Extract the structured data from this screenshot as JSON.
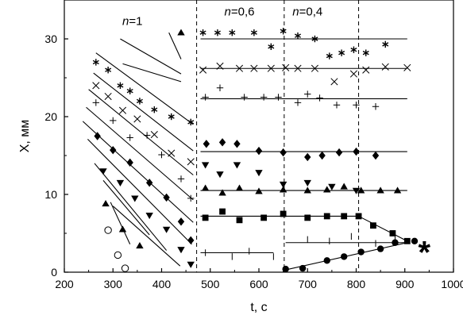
{
  "chart_data": {
    "type": "scatter",
    "title": "",
    "xlabel": "t, c",
    "ylabel": "X, мм",
    "xlim": [
      200,
      1000
    ],
    "ylim": [
      0,
      35
    ],
    "xticks": [
      200,
      300,
      400,
      500,
      600,
      700,
      800,
      900,
      1000
    ],
    "yticks": [
      0,
      10,
      20,
      30
    ],
    "grid": false,
    "vlines": [
      472,
      652,
      805
    ],
    "region_labels": [
      {
        "text": "n=1",
        "x": 340,
        "y": 31.8
      },
      {
        "text": "n=0,6",
        "x": 560,
        "y": 33.0
      },
      {
        "text": "n=0,4",
        "x": 700,
        "y": 33.0
      }
    ],
    "annotation_marker": {
      "text": "*",
      "x": 940,
      "y": 3.6
    },
    "lines": [
      {
        "x": [
          265,
          465
        ],
        "y": [
          28.2,
          19.0
        ]
      },
      {
        "x": [
          260,
          465
        ],
        "y": [
          25.6,
          15.6
        ]
      },
      {
        "x": [
          250,
          465
        ],
        "y": [
          23.5,
          12.5
        ]
      },
      {
        "x": [
          245,
          465
        ],
        "y": [
          21.2,
          9.3
        ]
      },
      {
        "x": [
          238,
          465
        ],
        "y": [
          19.4,
          6.4
        ]
      },
      {
        "x": [
          248,
          462
        ],
        "y": [
          17.1,
          3.6
        ]
      },
      {
        "x": [
          262,
          410
        ],
        "y": [
          14.0,
          2.8
        ]
      },
      {
        "x": [
          280,
          375
        ],
        "y": [
          11.8,
          4.8
        ]
      },
      {
        "x": [
          295,
          335
        ],
        "y": [
          9.0,
          3.6
        ]
      },
      {
        "x": [
          300,
          438
        ],
        "y": [
          8.5,
          0.8
        ]
      },
      {
        "x": [
          320,
          440
        ],
        "y": [
          26.8,
          24.5
        ]
      },
      {
        "x": [
          315,
          440
        ],
        "y": [
          30.0,
          25.5
        ]
      },
      {
        "x": [
          415,
          440
        ],
        "y": [
          30.8,
          27.4
        ]
      },
      {
        "x": [
          480,
          905
        ],
        "y": [
          30.0,
          30.0
        ]
      },
      {
        "x": [
          480,
          905
        ],
        "y": [
          26.2,
          26.2
        ]
      },
      {
        "x": [
          480,
          905
        ],
        "y": [
          22.3,
          22.3
        ]
      },
      {
        "x": [
          480,
          905
        ],
        "y": [
          15.5,
          15.5
        ]
      },
      {
        "x": [
          480,
          905
        ],
        "y": [
          10.5,
          10.5
        ]
      },
      {
        "x": [
          480,
          805
        ],
        "y": [
          7.2,
          7.2
        ]
      },
      {
        "x": [
          805,
          905
        ],
        "y": [
          7.2,
          4.0
        ]
      },
      {
        "x": [
          655,
          905
        ],
        "y": [
          3.8,
          3.8
        ]
      },
      {
        "x": [
          480,
          630
        ],
        "y": [
          2.5,
          2.5
        ]
      },
      {
        "x": [
          655,
          905
        ],
        "y": [
          0.3,
          3.8
        ]
      }
    ],
    "series": [
      {
        "marker": "asterisk",
        "x": [
          265,
          290,
          315,
          335,
          355,
          385,
          420,
          460,
          485,
          515,
          545,
          590,
          625,
          650,
          680,
          715,
          745,
          770,
          795,
          820,
          860
        ],
        "y": [
          27.0,
          26.0,
          24.0,
          23.3,
          22.0,
          20.9,
          20.0,
          19.3,
          30.8,
          30.8,
          30.8,
          30.8,
          29.0,
          31.0,
          30.4,
          30.0,
          27.8,
          28.2,
          28.6,
          28.2,
          29.3
        ]
      },
      {
        "marker": "cross",
        "x": [
          265,
          290,
          320,
          350,
          385,
          420,
          460,
          485,
          520,
          560,
          590,
          625,
          655,
          680,
          715,
          755,
          795,
          820,
          860,
          905
        ],
        "y": [
          24.0,
          22.6,
          20.8,
          19.7,
          17.7,
          15.3,
          14.2,
          26.0,
          26.5,
          26.2,
          26.2,
          26.2,
          26.3,
          26.2,
          26.2,
          24.5,
          25.5,
          26.0,
          26.4,
          26.3
        ]
      },
      {
        "marker": "plus",
        "x": [
          265,
          300,
          335,
          370,
          400,
          440,
          460,
          490,
          520,
          570,
          610,
          640,
          680,
          700,
          725,
          760,
          800,
          840
        ],
        "y": [
          21.8,
          19.5,
          17.3,
          17.6,
          15.1,
          12.0,
          9.5,
          22.5,
          23.7,
          22.5,
          22.5,
          22.5,
          21.8,
          22.9,
          22.4,
          21.5,
          21.5,
          21.3
        ]
      },
      {
        "marker": "diamond",
        "x": [
          268,
          300,
          335,
          375,
          410,
          440,
          460,
          492,
          525,
          555,
          600,
          650,
          700,
          730,
          765,
          800,
          840
        ],
        "y": [
          17.5,
          15.7,
          14.1,
          11.5,
          9.6,
          6.5,
          4.1,
          16.5,
          16.7,
          16.5,
          15.6,
          15.4,
          14.8,
          15.0,
          15.4,
          15.5,
          15.0
        ]
      },
      {
        "marker": "triangle-down",
        "x": [
          280,
          315,
          345,
          375,
          410,
          440,
          460,
          490,
          520,
          555,
          600,
          650,
          700,
          750,
          800
        ],
        "y": [
          13.0,
          11.5,
          9.5,
          7.3,
          5.5,
          2.9,
          1.0,
          13.8,
          12.6,
          13.8,
          12.8,
          11.3,
          11.5,
          11.0,
          10.5
        ]
      },
      {
        "marker": "triangle-up",
        "x": [
          285,
          320,
          355,
          440,
          490,
          525,
          560,
          600,
          650,
          700,
          740,
          775,
          810,
          850,
          885
        ],
        "y": [
          8.8,
          5.5,
          3.4,
          30.8,
          10.8,
          10.2,
          10.8,
          10.4,
          10.6,
          10.5,
          10.6,
          11.0,
          10.5,
          10.5,
          10.5
        ]
      },
      {
        "marker": "square",
        "x": [
          490,
          525,
          560,
          610,
          650,
          700,
          740,
          775,
          805,
          835,
          875,
          905
        ],
        "y": [
          7.0,
          7.8,
          6.7,
          7.0,
          7.5,
          7.0,
          7.2,
          7.2,
          7.2,
          6.0,
          5.0,
          4.0
        ]
      },
      {
        "marker": "circle",
        "x": [
          290,
          310,
          325
        ],
        "y": [
          5.4,
          2.2,
          0.5
        ]
      },
      {
        "marker": "filled-circle",
        "x": [
          655,
          690,
          740,
          775,
          810,
          850,
          880,
          920
        ],
        "y": [
          0.4,
          0.5,
          1.5,
          2.0,
          2.6,
          3.0,
          3.8,
          4.0
        ]
      },
      {
        "marker": "vbar",
        "x": [
          490,
          545,
          580,
          630,
          700,
          745,
          790,
          840,
          880
        ],
        "y": [
          2.5,
          2.0,
          2.7,
          2.0,
          4.2,
          4.0,
          4.6,
          3.7,
          4.2
        ]
      }
    ]
  }
}
